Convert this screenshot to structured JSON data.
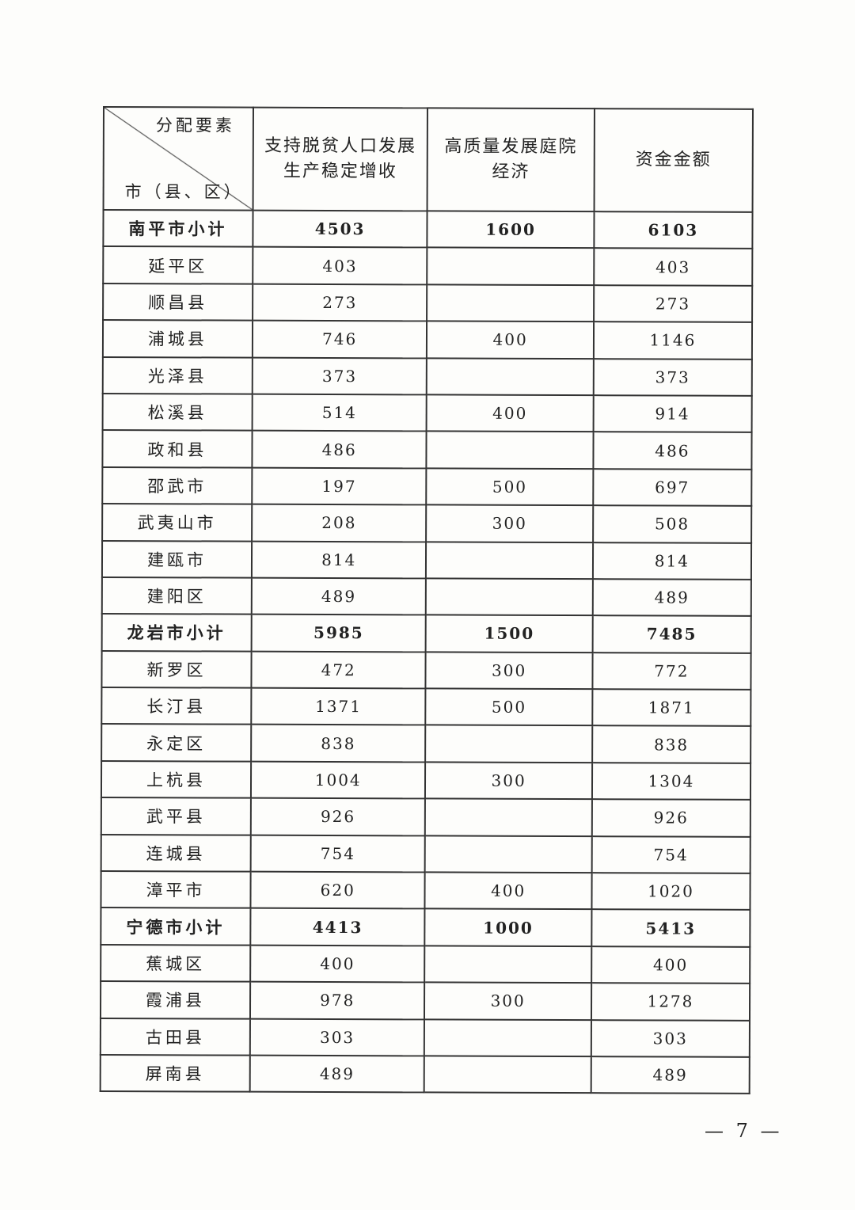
{
  "table": {
    "header": {
      "corner_top": "分配要素",
      "corner_bottom": "市（县、区）",
      "columns": [
        "支持脱贫人口发展生产稳定增收",
        "高质量发展庭院经济",
        "资金金额"
      ]
    },
    "rows": [
      {
        "name": "南平市小计",
        "a": "4503",
        "b": "1600",
        "total": "6103",
        "subtotal": true
      },
      {
        "name": "延平区",
        "a": "403",
        "b": "",
        "total": "403"
      },
      {
        "name": "顺昌县",
        "a": "273",
        "b": "",
        "total": "273"
      },
      {
        "name": "浦城县",
        "a": "746",
        "b": "400",
        "total": "1146"
      },
      {
        "name": "光泽县",
        "a": "373",
        "b": "",
        "total": "373"
      },
      {
        "name": "松溪县",
        "a": "514",
        "b": "400",
        "total": "914"
      },
      {
        "name": "政和县",
        "a": "486",
        "b": "",
        "total": "486"
      },
      {
        "name": "邵武市",
        "a": "197",
        "b": "500",
        "total": "697"
      },
      {
        "name": "武夷山市",
        "a": "208",
        "b": "300",
        "total": "508"
      },
      {
        "name": "建瓯市",
        "a": "814",
        "b": "",
        "total": "814"
      },
      {
        "name": "建阳区",
        "a": "489",
        "b": "",
        "total": "489"
      },
      {
        "name": "龙岩市小计",
        "a": "5985",
        "b": "1500",
        "total": "7485",
        "subtotal": true
      },
      {
        "name": "新罗区",
        "a": "472",
        "b": "300",
        "total": "772"
      },
      {
        "name": "长汀县",
        "a": "1371",
        "b": "500",
        "total": "1871"
      },
      {
        "name": "永定区",
        "a": "838",
        "b": "",
        "total": "838"
      },
      {
        "name": "上杭县",
        "a": "1004",
        "b": "300",
        "total": "1304"
      },
      {
        "name": "武平县",
        "a": "926",
        "b": "",
        "total": "926"
      },
      {
        "name": "连城县",
        "a": "754",
        "b": "",
        "total": "754"
      },
      {
        "name": "漳平市",
        "a": "620",
        "b": "400",
        "total": "1020"
      },
      {
        "name": "宁德市小计",
        "a": "4413",
        "b": "1000",
        "total": "5413",
        "subtotal": true
      },
      {
        "name": "蕉城区",
        "a": "400",
        "b": "",
        "total": "400"
      },
      {
        "name": "霞浦县",
        "a": "978",
        "b": "300",
        "total": "1278"
      },
      {
        "name": "古田县",
        "a": "303",
        "b": "",
        "total": "303"
      },
      {
        "name": "屏南县",
        "a": "489",
        "b": "",
        "total": "489"
      }
    ]
  },
  "page_number": "— 7 —"
}
